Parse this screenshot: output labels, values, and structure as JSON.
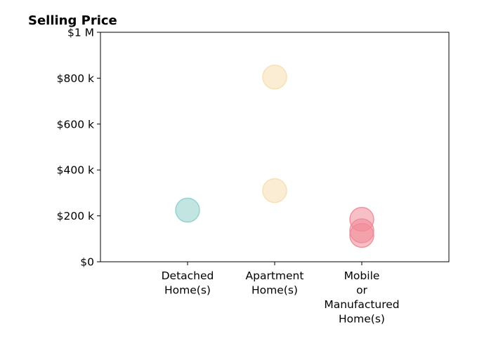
{
  "chart_data": {
    "type": "scatter",
    "title": "Selling Price",
    "xlabel": "",
    "ylabel": "",
    "categories": [
      [
        "Detached",
        "Home(s)"
      ],
      [
        "Apartment",
        "Home(s)"
      ],
      [
        "Mobile",
        "or",
        "Manufactured",
        "Home(s)"
      ]
    ],
    "ylim": [
      0,
      1000000
    ],
    "y_ticks": [
      {
        "value": 0,
        "label": "$0"
      },
      {
        "value": 200000,
        "label": "$200 k"
      },
      {
        "value": 400000,
        "label": "$400 k"
      },
      {
        "value": 600000,
        "label": "$600 k"
      },
      {
        "value": 800000,
        "label": "$800 k"
      },
      {
        "value": 1000000,
        "label": "$1 M"
      }
    ],
    "grid": false,
    "legend": "none",
    "series": [
      {
        "category_index": 0,
        "color": "#8fd0c9",
        "values": [
          225000
        ]
      },
      {
        "category_index": 1,
        "color": "#f5dfb0",
        "values": [
          805000,
          310000
        ]
      },
      {
        "category_index": 2,
        "color": "#f08a98",
        "values": [
          185000,
          135000,
          115000
        ]
      }
    ]
  }
}
